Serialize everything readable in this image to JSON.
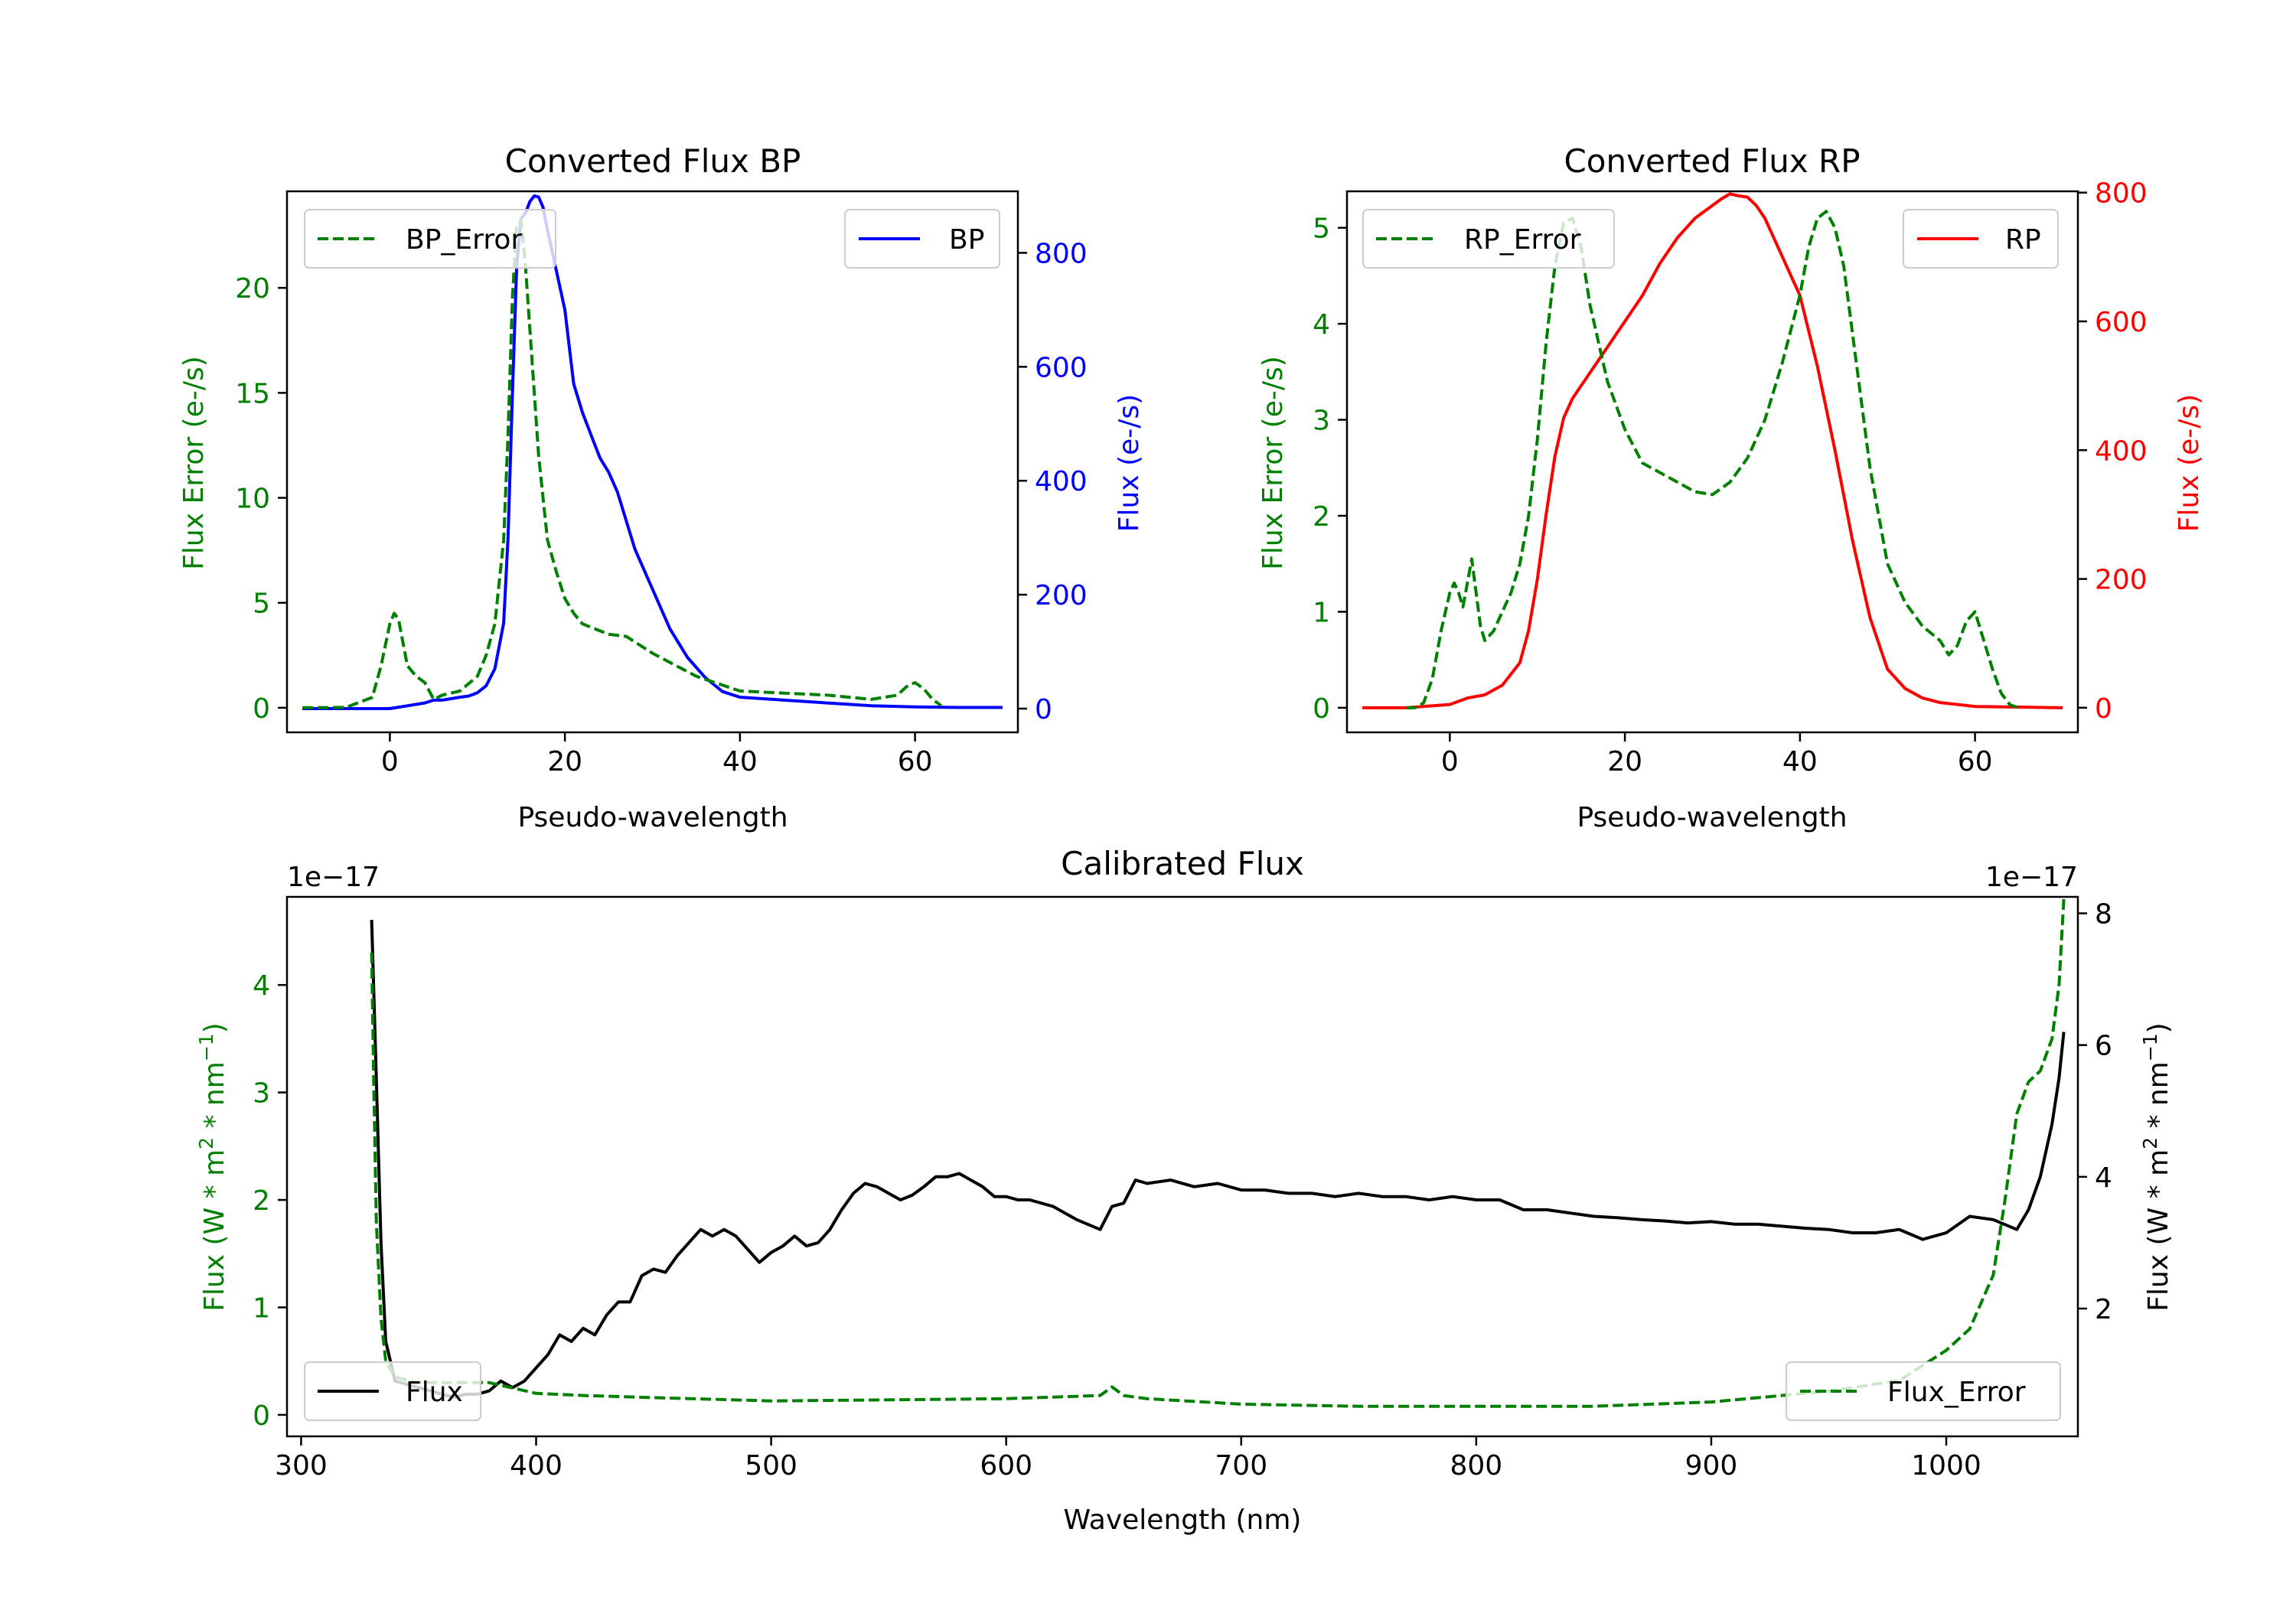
{
  "colors": {
    "error": "#008000",
    "bp": "#0000ff",
    "rp": "#ff0000",
    "flux": "#000000",
    "axis": "#000000",
    "legend_border": "#cccccc"
  },
  "chart_data": [
    {
      "id": "bp",
      "type": "line",
      "title": "Converted Flux BP",
      "xlabel": "Pseudo-wavelength",
      "ylabel_left": "Flux Error (e-/s)",
      "ylabel_right": "Flux (e-/s)",
      "xlim": [
        -11.75,
        71.75
      ],
      "ylim_left": [
        -1.17,
        24.6
      ],
      "ylim_right": [
        -41.6,
        908
      ],
      "xticks": [
        0,
        20,
        40,
        60
      ],
      "yticks_left": [
        0,
        5,
        10,
        15,
        20
      ],
      "yticks_right": [
        0,
        200,
        400,
        600,
        800
      ],
      "series": [
        {
          "name": "BP_Error",
          "axis": "left",
          "style": "dashed",
          "legend": "upper left",
          "x": [
            -10,
            -5,
            -2,
            -1,
            0,
            0.5,
            1,
            2,
            3,
            4,
            5,
            6,
            8,
            10,
            11,
            12,
            13,
            13.5,
            14,
            14.5,
            15,
            15.5,
            16,
            17,
            18,
            19,
            20,
            21,
            22,
            25,
            27,
            30,
            35,
            40,
            45,
            50,
            55,
            58,
            59,
            60,
            61,
            62,
            63
          ],
          "y": [
            0,
            0.02,
            0.5,
            2.0,
            4.0,
            4.5,
            4.2,
            2.0,
            1.5,
            1.2,
            0.4,
            0.6,
            0.8,
            1.5,
            2.5,
            4.0,
            8.0,
            13.0,
            19.5,
            23.0,
            23.2,
            21.0,
            18.0,
            12.0,
            8.0,
            6.5,
            5.2,
            4.5,
            4.0,
            3.5,
            3.4,
            2.6,
            1.5,
            0.8,
            0.7,
            0.6,
            0.4,
            0.6,
            1.0,
            1.2,
            0.9,
            0.4,
            0.1
          ]
        },
        {
          "name": "BP",
          "axis": "right",
          "style": "solid",
          "legend": "upper right",
          "x": [
            -10,
            0,
            2,
            4,
            5,
            6,
            8,
            9,
            10,
            11,
            12,
            13,
            13.5,
            14,
            14.5,
            15,
            15.5,
            16,
            16.5,
            17,
            17.5,
            18,
            19,
            20,
            21,
            22,
            23,
            24,
            25,
            26,
            27,
            28,
            30,
            32,
            34,
            36,
            38,
            40,
            45,
            50,
            55,
            60,
            65,
            70
          ],
          "y": [
            0,
            0,
            5,
            10,
            15,
            15,
            20,
            22,
            28,
            40,
            70,
            150,
            300,
            550,
            780,
            860,
            870,
            890,
            900,
            898,
            880,
            840,
            770,
            700,
            570,
            520,
            480,
            440,
            415,
            380,
            330,
            280,
            210,
            140,
            90,
            55,
            30,
            20,
            15,
            10,
            5,
            3,
            2,
            2
          ]
        }
      ]
    },
    {
      "id": "rp",
      "type": "line",
      "title": "Converted Flux RP",
      "xlabel": "Pseudo-wavelength",
      "ylabel_left": "Flux Error (e-/s)",
      "ylabel_right": "Flux (e-/s)",
      "xlim": [
        -11.75,
        71.75
      ],
      "ylim_left": [
        -0.256,
        5.38
      ],
      "ylim_right": [
        -38.2,
        802
      ],
      "xticks": [
        0,
        20,
        40,
        60
      ],
      "yticks_left": [
        0,
        1,
        2,
        3,
        4,
        5
      ],
      "yticks_right": [
        0,
        200,
        400,
        600,
        800
      ],
      "series": [
        {
          "name": "RP_Error",
          "axis": "left",
          "style": "dashed",
          "legend": "upper left",
          "x": [
            -5,
            -4,
            -3,
            -2,
            -1,
            0,
            0.5,
            1,
            1.5,
            2,
            2.5,
            3,
            3.5,
            4,
            5,
            6,
            7,
            8,
            9,
            10,
            11,
            12,
            13,
            14,
            15,
            16,
            18,
            20,
            22,
            25,
            28,
            30,
            32,
            34,
            36,
            38,
            40,
            41,
            42,
            43,
            44,
            45,
            46,
            48,
            50,
            52,
            54,
            56,
            57,
            58,
            59,
            60,
            61,
            62,
            63,
            64,
            65
          ],
          "y": [
            0,
            0,
            0.05,
            0.3,
            0.8,
            1.2,
            1.3,
            1.2,
            1.05,
            1.3,
            1.55,
            1.2,
            0.85,
            0.7,
            0.8,
            1.0,
            1.2,
            1.5,
            2.0,
            2.8,
            3.8,
            4.6,
            5.05,
            5.1,
            4.8,
            4.2,
            3.4,
            2.9,
            2.55,
            2.4,
            2.25,
            2.22,
            2.35,
            2.6,
            3.0,
            3.6,
            4.3,
            4.8,
            5.1,
            5.17,
            5.0,
            4.6,
            3.9,
            2.5,
            1.5,
            1.1,
            0.85,
            0.7,
            0.55,
            0.65,
            0.9,
            1.0,
            0.7,
            0.4,
            0.15,
            0.03,
            0
          ]
        },
        {
          "name": "RP",
          "axis": "right",
          "style": "solid",
          "legend": "upper right",
          "x": [
            -10,
            -5,
            0,
            2,
            4,
            6,
            8,
            9,
            10,
            11,
            12,
            13,
            14,
            15,
            16,
            18,
            20,
            22,
            24,
            26,
            28,
            30,
            31,
            32,
            33,
            34,
            35,
            36,
            38,
            40,
            42,
            44,
            46,
            48,
            50,
            52,
            54,
            56,
            58,
            60,
            65,
            70
          ],
          "y": [
            0,
            0,
            5,
            15,
            20,
            35,
            70,
            120,
            200,
            300,
            390,
            450,
            480,
            500,
            520,
            560,
            600,
            640,
            690,
            730,
            760,
            780,
            790,
            798,
            795,
            793,
            780,
            760,
            700,
            640,
            530,
            400,
            260,
            140,
            60,
            30,
            15,
            8,
            5,
            2,
            1,
            0
          ]
        }
      ]
    },
    {
      "id": "cal",
      "type": "line",
      "title": "Calibrated Flux",
      "xlabel": "Wavelength (nm)",
      "ylabel_left": "Flux (W * m",
      "ylabel_right": "Flux (W * m",
      "ylabel_sup1": "2",
      "ylabel_mid": " * nm",
      "ylabel_sup2": "−1",
      "ylabel_end": ")",
      "offset_left": "1e−17",
      "offset_right": "1e−17",
      "xlim": [
        294,
        1056
      ],
      "ylim_left": [
        -0.2,
        4.82
      ],
      "ylim_right": [
        0.06,
        8.25
      ],
      "xticks": [
        300,
        400,
        500,
        600,
        700,
        800,
        900,
        1000
      ],
      "yticks_left": [
        0,
        1,
        2,
        3,
        4
      ],
      "yticks_right": [
        2,
        4,
        6,
        8
      ],
      "series": [
        {
          "name": "Flux_Error",
          "axis": "left",
          "style": "dashed",
          "legend": "lower right",
          "x": [
            330,
            331,
            332,
            334,
            336,
            340,
            350,
            360,
            370,
            380,
            390,
            400,
            420,
            450,
            500,
            550,
            600,
            640,
            645,
            650,
            660,
            700,
            750,
            800,
            850,
            900,
            950,
            980,
            1000,
            1010,
            1020,
            1025,
            1030,
            1035,
            1040,
            1045,
            1048,
            1050
          ],
          "y": [
            4.3,
            3.0,
            1.8,
            0.9,
            0.5,
            0.35,
            0.3,
            0.3,
            0.3,
            0.3,
            0.25,
            0.2,
            0.18,
            0.16,
            0.13,
            0.14,
            0.15,
            0.18,
            0.26,
            0.18,
            0.15,
            0.1,
            0.08,
            0.08,
            0.08,
            0.12,
            0.22,
            0.32,
            0.6,
            0.8,
            1.3,
            2.0,
            2.8,
            3.1,
            3.2,
            3.5,
            4.0,
            4.8
          ]
        },
        {
          "name": "Flux",
          "axis": "right",
          "style": "solid",
          "legend": "lower left",
          "x": [
            330,
            332,
            334,
            336,
            340,
            345,
            350,
            355,
            360,
            365,
            370,
            375,
            380,
            385,
            390,
            395,
            400,
            405,
            410,
            415,
            420,
            425,
            430,
            435,
            440,
            445,
            450,
            455,
            460,
            465,
            470,
            475,
            480,
            485,
            490,
            495,
            500,
            505,
            510,
            515,
            520,
            525,
            530,
            535,
            540,
            545,
            550,
            555,
            560,
            565,
            570,
            575,
            580,
            585,
            590,
            595,
            600,
            605,
            610,
            620,
            630,
            640,
            645,
            650,
            655,
            660,
            670,
            680,
            690,
            700,
            710,
            720,
            730,
            740,
            750,
            760,
            770,
            780,
            790,
            800,
            810,
            820,
            830,
            840,
            850,
            860,
            870,
            880,
            890,
            900,
            910,
            920,
            930,
            940,
            950,
            960,
            970,
            980,
            990,
            1000,
            1010,
            1020,
            1030,
            1035,
            1040,
            1045,
            1048,
            1050
          ],
          "y": [
            7.9,
            5.5,
            3.0,
            1.5,
            0.9,
            0.85,
            0.8,
            0.75,
            0.7,
            0.65,
            0.7,
            0.7,
            0.75,
            0.9,
            0.8,
            0.9,
            1.1,
            1.3,
            1.6,
            1.5,
            1.7,
            1.6,
            1.9,
            2.1,
            2.1,
            2.5,
            2.6,
            2.55,
            2.8,
            3.0,
            3.2,
            3.1,
            3.2,
            3.1,
            2.9,
            2.7,
            2.85,
            2.95,
            3.1,
            2.95,
            3.0,
            3.2,
            3.5,
            3.75,
            3.9,
            3.85,
            3.75,
            3.65,
            3.72,
            3.85,
            4.0,
            4.0,
            4.05,
            3.95,
            3.85,
            3.7,
            3.7,
            3.65,
            3.65,
            3.55,
            3.35,
            3.2,
            3.55,
            3.6,
            3.95,
            3.9,
            3.95,
            3.85,
            3.9,
            3.8,
            3.8,
            3.75,
            3.75,
            3.7,
            3.75,
            3.7,
            3.7,
            3.65,
            3.7,
            3.65,
            3.65,
            3.5,
            3.5,
            3.45,
            3.4,
            3.38,
            3.35,
            3.33,
            3.3,
            3.32,
            3.28,
            3.28,
            3.25,
            3.22,
            3.2,
            3.15,
            3.15,
            3.2,
            3.05,
            3.15,
            3.4,
            3.35,
            3.2,
            3.5,
            4.0,
            4.8,
            5.5,
            6.2
          ]
        }
      ]
    }
  ]
}
